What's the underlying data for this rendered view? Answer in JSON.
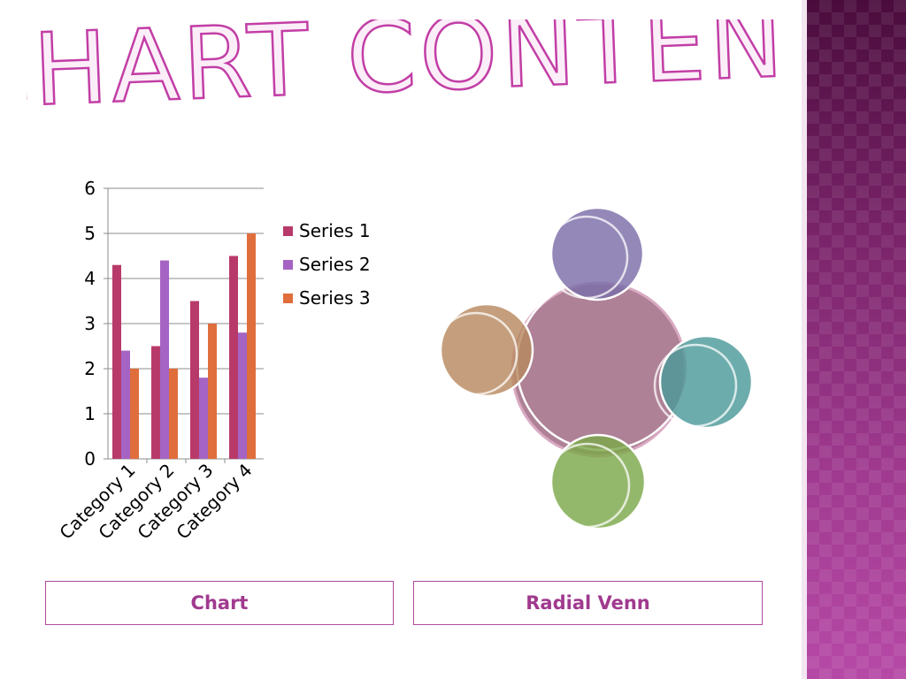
{
  "slide": {
    "title": "CHART CONTENT",
    "accent_color": "#a03a8e",
    "title_stroke": "#c23ea6",
    "title_fill": "#fbeef8"
  },
  "captions": {
    "chart": "Chart",
    "venn": "Radial Venn"
  },
  "chart_data": {
    "type": "bar",
    "categories": [
      "Category 1",
      "Category 2",
      "Category 3",
      "Category 4"
    ],
    "series": [
      {
        "name": "Series 1",
        "values": [
          4.3,
          2.5,
          3.5,
          4.5
        ],
        "color": "#b83a6a"
      },
      {
        "name": "Series 2",
        "values": [
          2.4,
          4.4,
          1.8,
          2.8
        ],
        "color": "#a564c4"
      },
      {
        "name": "Series 3",
        "values": [
          2.0,
          2.0,
          3.0,
          5.0
        ],
        "color": "#e06e3c"
      }
    ],
    "ylim": [
      0,
      6
    ],
    "yticks": [
      0,
      1,
      2,
      3,
      4,
      5,
      6
    ],
    "grid": true,
    "legend": "right"
  },
  "venn": {
    "center_color": "#a37088",
    "satellites": [
      {
        "name": "top",
        "color": "#7b6ea8"
      },
      {
        "name": "right",
        "color": "#4d9a9a"
      },
      {
        "name": "bottom",
        "color": "#7da84a"
      },
      {
        "name": "left",
        "color": "#b88a60"
      }
    ]
  }
}
